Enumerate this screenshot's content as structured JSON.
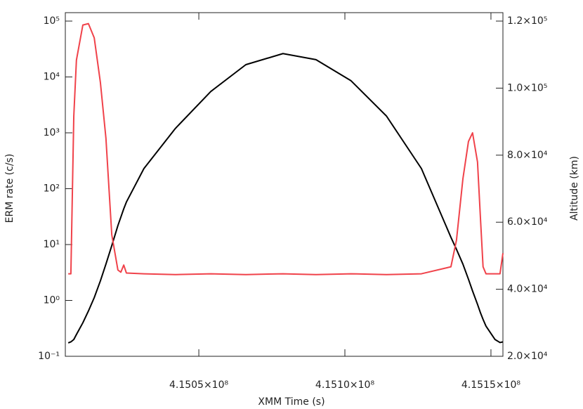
{
  "chart_data": {
    "type": "line",
    "x_label": "XMM Time (s)",
    "y_label": "ERM rate (c/s)",
    "y2_label": "Altitude (km)",
    "x": [
      415005300,
      415006200,
      415007200,
      415008100,
      415010300,
      415012200,
      415014200,
      415016300,
      415018200,
      415020200,
      415022300,
      415023300,
      415024300,
      415025200,
      415031200,
      415042000,
      415054100,
      415066100,
      415078800,
      415090100,
      415102100,
      415114200,
      415126200,
      415136300,
      415138200,
      415140400,
      415142300,
      415143700,
      415145400,
      415146400,
      415147300,
      415148300,
      415151400,
      415153100,
      415154100
    ],
    "series": [
      {
        "name": "ERM rate",
        "color": "#f0424a",
        "axis": "y",
        "values": [
          3,
          3,
          2000,
          20000,
          85000,
          90000,
          50000,
          8000,
          800,
          15,
          3.5,
          3.2,
          4.3,
          3.1,
          3,
          2.9,
          3,
          2.9,
          3,
          2.9,
          3,
          2.9,
          3,
          4,
          12,
          150,
          700,
          1000,
          300,
          30,
          4,
          3,
          3,
          3,
          7
        ]
      },
      {
        "name": "Altitude",
        "color": "#000000",
        "axis": "y2",
        "values": [
          24000,
          24300,
          25000,
          26500,
          30000,
          33500,
          37500,
          42500,
          47500,
          53000,
          59000,
          61500,
          64000,
          66000,
          76000,
          88000,
          99000,
          107000,
          110300,
          108500,
          102200,
          91700,
          76000,
          55500,
          51900,
          47500,
          43000,
          39500,
          35500,
          33000,
          31000,
          29000,
          25000,
          24100,
          24300
        ]
      }
    ],
    "xlim": [
      415004300,
      415154100
    ],
    "xticks": [
      {
        "value": 415050000,
        "label": "4.1505×10⁸"
      },
      {
        "value": 415100000,
        "label": "4.1510×10⁸"
      },
      {
        "value": 415150000,
        "label": "4.1515×10⁸"
      }
    ],
    "ylim": [
      0.1,
      100000
    ],
    "ylog": true,
    "yticks": [
      {
        "value": 0.1,
        "label": "10⁻¹"
      },
      {
        "value": 1,
        "label": "10⁰"
      },
      {
        "value": 10,
        "label": "10¹"
      },
      {
        "value": 100,
        "label": "10²"
      },
      {
        "value": 1000,
        "label": "10³"
      },
      {
        "value": 10000,
        "label": "10⁴"
      },
      {
        "value": 100000,
        "label": "10⁵"
      }
    ],
    "y2lim": [
      20000,
      120000
    ],
    "y2ticks": [
      {
        "value": 20000,
        "label": "2.0×10⁴"
      },
      {
        "value": 40000,
        "label": "4.0×10⁴"
      },
      {
        "value": 60000,
        "label": "6.0×10⁴"
      },
      {
        "value": 80000,
        "label": "8.0×10⁴"
      },
      {
        "value": 100000,
        "label": "1.0×10⁵"
      },
      {
        "value": 120000,
        "label": "1.2×10⁵"
      }
    ]
  }
}
